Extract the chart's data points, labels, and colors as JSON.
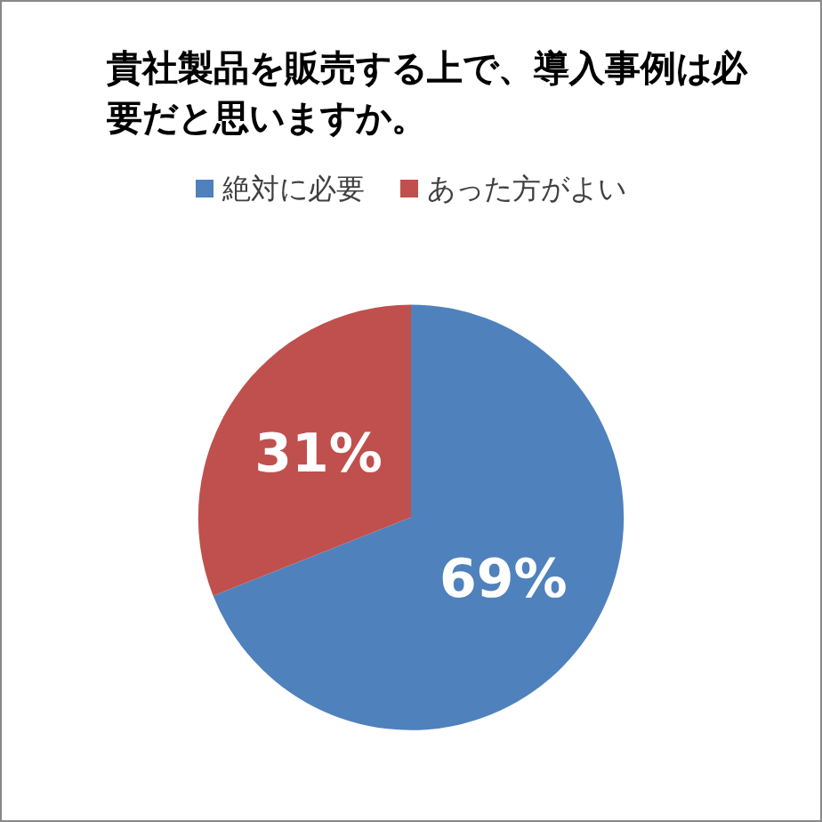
{
  "chart_data": {
    "type": "pie",
    "title": "貴社製品を販売する上で、導入事例は必要だと思いますか。",
    "categories": [
      "絶対に必要",
      "あった方がよい"
    ],
    "values": [
      69,
      31
    ],
    "colors": [
      "#4f81bd",
      "#c0504d"
    ],
    "value_labels": [
      "69%",
      "31%"
    ],
    "legend": "top"
  }
}
